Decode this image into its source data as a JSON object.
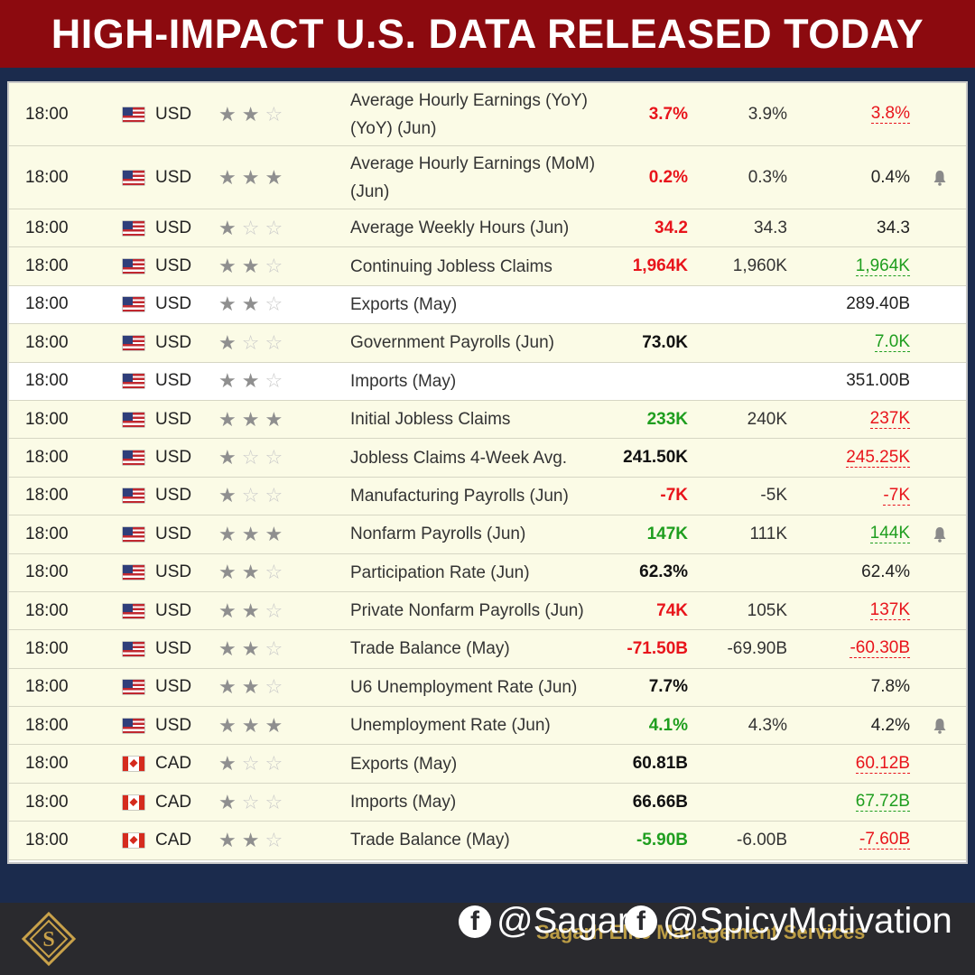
{
  "header": {
    "title": "HIGH-IMPACT U.S. DATA RELEASED TODAY"
  },
  "colors": {
    "header_bg": "#8c0a0f",
    "page_bg": "#1b2b4d",
    "row_bg": "#fbfbe6",
    "negative": "#e8141b",
    "positive": "#1f9e1f"
  },
  "rows": [
    {
      "time": "18:00",
      "flag": "us-flag",
      "currency": "USD",
      "importance": 2,
      "event": "Average Hourly Earnings (YoY) (YoY) (Jun)",
      "actual": "3.7%",
      "actual_color": "red",
      "forecast": "3.9%",
      "previous": "3.8%",
      "previous_color": "red",
      "alert": false,
      "bg": "cream"
    },
    {
      "time": "18:00",
      "flag": "us-flag",
      "currency": "USD",
      "importance": 3,
      "event": "Average Hourly Earnings (MoM) (Jun)",
      "actual": "0.2%",
      "actual_color": "red",
      "forecast": "0.3%",
      "previous": "0.4%",
      "previous_color": "",
      "alert": true,
      "bg": "cream"
    },
    {
      "time": "18:00",
      "flag": "us-flag",
      "currency": "USD",
      "importance": 1,
      "event": "Average Weekly Hours (Jun)",
      "actual": "34.2",
      "actual_color": "red",
      "forecast": "34.3",
      "previous": "34.3",
      "previous_color": "",
      "alert": false,
      "bg": "cream"
    },
    {
      "time": "18:00",
      "flag": "us-flag",
      "currency": "USD",
      "importance": 2,
      "event": "Continuing Jobless Claims",
      "actual": "1,964K",
      "actual_color": "red",
      "forecast": "1,960K",
      "previous": "1,964K",
      "previous_color": "green",
      "alert": false,
      "bg": "cream"
    },
    {
      "time": "18:00",
      "flag": "us-flag",
      "currency": "USD",
      "importance": 2,
      "event": "Exports (May)",
      "actual": "",
      "actual_color": "",
      "forecast": "",
      "previous": "289.40B",
      "previous_color": "",
      "alert": false,
      "bg": "white"
    },
    {
      "time": "18:00",
      "flag": "us-flag",
      "currency": "USD",
      "importance": 1,
      "event": "Government Payrolls (Jun)",
      "actual": "73.0K",
      "actual_color": "",
      "forecast": "",
      "previous": "7.0K",
      "previous_color": "green",
      "alert": false,
      "bg": "cream"
    },
    {
      "time": "18:00",
      "flag": "us-flag",
      "currency": "USD",
      "importance": 2,
      "event": "Imports (May)",
      "actual": "",
      "actual_color": "",
      "forecast": "",
      "previous": "351.00B",
      "previous_color": "",
      "alert": false,
      "bg": "white"
    },
    {
      "time": "18:00",
      "flag": "us-flag",
      "currency": "USD",
      "importance": 3,
      "event": "Initial Jobless Claims",
      "actual": "233K",
      "actual_color": "green",
      "forecast": "240K",
      "previous": "237K",
      "previous_color": "red",
      "alert": false,
      "bg": "cream"
    },
    {
      "time": "18:00",
      "flag": "us-flag",
      "currency": "USD",
      "importance": 1,
      "event": "Jobless Claims 4-Week Avg.",
      "actual": "241.50K",
      "actual_color": "",
      "forecast": "",
      "previous": "245.25K",
      "previous_color": "red",
      "alert": false,
      "bg": "cream"
    },
    {
      "time": "18:00",
      "flag": "us-flag",
      "currency": "USD",
      "importance": 1,
      "event": "Manufacturing Payrolls (Jun)",
      "actual": "-7K",
      "actual_color": "red",
      "forecast": "-5K",
      "previous": "-7K",
      "previous_color": "red",
      "alert": false,
      "bg": "cream"
    },
    {
      "time": "18:00",
      "flag": "us-flag",
      "currency": "USD",
      "importance": 3,
      "event": "Nonfarm Payrolls (Jun)",
      "actual": "147K",
      "actual_color": "green",
      "forecast": "111K",
      "previous": "144K",
      "previous_color": "green",
      "alert": true,
      "bg": "cream"
    },
    {
      "time": "18:00",
      "flag": "us-flag",
      "currency": "USD",
      "importance": 2,
      "event": "Participation Rate (Jun)",
      "actual": "62.3%",
      "actual_color": "",
      "forecast": "",
      "previous": "62.4%",
      "previous_color": "",
      "alert": false,
      "bg": "cream"
    },
    {
      "time": "18:00",
      "flag": "us-flag",
      "currency": "USD",
      "importance": 2,
      "event": "Private Nonfarm Payrolls (Jun)",
      "actual": "74K",
      "actual_color": "red",
      "forecast": "105K",
      "previous": "137K",
      "previous_color": "red",
      "alert": false,
      "bg": "cream"
    },
    {
      "time": "18:00",
      "flag": "us-flag",
      "currency": "USD",
      "importance": 2,
      "event": "Trade Balance (May)",
      "actual": "-71.50B",
      "actual_color": "red",
      "forecast": "-69.90B",
      "previous": "-60.30B",
      "previous_color": "red",
      "alert": false,
      "bg": "cream"
    },
    {
      "time": "18:00",
      "flag": "us-flag",
      "currency": "USD",
      "importance": 2,
      "event": "U6 Unemployment Rate (Jun)",
      "actual": "7.7%",
      "actual_color": "",
      "forecast": "",
      "previous": "7.8%",
      "previous_color": "",
      "alert": false,
      "bg": "cream"
    },
    {
      "time": "18:00",
      "flag": "us-flag",
      "currency": "USD",
      "importance": 3,
      "event": "Unemployment Rate (Jun)",
      "actual": "4.1%",
      "actual_color": "green",
      "forecast": "4.3%",
      "previous": "4.2%",
      "previous_color": "",
      "alert": true,
      "bg": "cream"
    },
    {
      "time": "18:00",
      "flag": "ca-flag",
      "currency": "CAD",
      "importance": 1,
      "event": "Exports (May)",
      "actual": "60.81B",
      "actual_color": "",
      "forecast": "",
      "previous": "60.12B",
      "previous_color": "red",
      "alert": false,
      "bg": "cream"
    },
    {
      "time": "18:00",
      "flag": "ca-flag",
      "currency": "CAD",
      "importance": 1,
      "event": "Imports (May)",
      "actual": "66.66B",
      "actual_color": "",
      "forecast": "",
      "previous": "67.72B",
      "previous_color": "green",
      "alert": false,
      "bg": "cream"
    },
    {
      "time": "18:00",
      "flag": "ca-flag",
      "currency": "CAD",
      "importance": 2,
      "event": "Trade Balance (May)",
      "actual": "-5.90B",
      "actual_color": "green",
      "forecast": "-6.00B",
      "previous": "-7.60B",
      "previous_color": "red",
      "alert": false,
      "bg": "cream"
    }
  ],
  "footer": {
    "handle_one": "@Sagar",
    "handle_two": "@SpicyMotivation",
    "company": "Sagarh Elite Management Services",
    "social_icon": "facebook-icon",
    "logo_icon": "diamond-s-logo"
  }
}
